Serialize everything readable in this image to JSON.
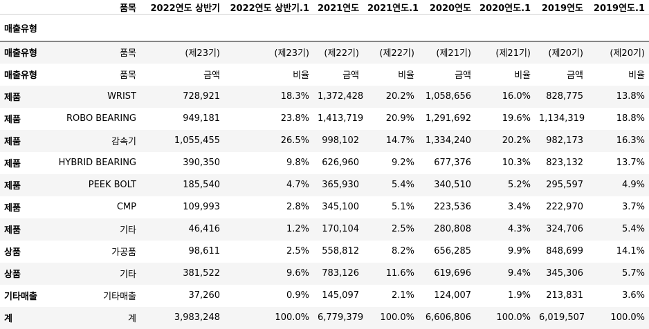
{
  "header": {
    "corner_label": "품목",
    "columns": [
      "2022연도 상반기",
      "2022연도 상반기.1",
      "2021연도",
      "2021연도.1",
      "2020연도",
      "2020연도.1",
      "2019연도",
      "2019연도.1"
    ],
    "index_name": "매출유형"
  },
  "rows": [
    {
      "type": "매출유형",
      "item": "품목",
      "values": [
        "(제23기)",
        "(제23기)",
        "(제22기)",
        "(제22기)",
        "(제21기)",
        "(제21기)",
        "(제20기)",
        "(제20기)"
      ]
    },
    {
      "type": "매출유형",
      "item": "품목",
      "values": [
        "금액",
        "비율",
        "금액",
        "비율",
        "금액",
        "비율",
        "금액",
        "비율"
      ]
    },
    {
      "type": "제품",
      "item": "WRIST",
      "values": [
        "728,921",
        "18.3%",
        "1,372,428",
        "20.2%",
        "1,058,656",
        "16.0%",
        "828,775",
        "13.8%"
      ]
    },
    {
      "type": "제품",
      "item": "ROBO BEARING",
      "values": [
        "949,181",
        "23.8%",
        "1,413,719",
        "20.9%",
        "1,291,692",
        "19.6%",
        "1,134,319",
        "18.8%"
      ]
    },
    {
      "type": "제품",
      "item": "감속기",
      "values": [
        "1,055,455",
        "26.5%",
        "998,102",
        "14.7%",
        "1,334,240",
        "20.2%",
        "982,173",
        "16.3%"
      ]
    },
    {
      "type": "제품",
      "item": "HYBRID BEARING",
      "values": [
        "390,350",
        "9.8%",
        "626,960",
        "9.2%",
        "677,376",
        "10.3%",
        "823,132",
        "13.7%"
      ]
    },
    {
      "type": "제품",
      "item": "PEEK BOLT",
      "values": [
        "185,540",
        "4.7%",
        "365,930",
        "5.4%",
        "340,510",
        "5.2%",
        "295,597",
        "4.9%"
      ]
    },
    {
      "type": "제품",
      "item": "CMP",
      "values": [
        "109,993",
        "2.8%",
        "345,100",
        "5.1%",
        "223,536",
        "3.4%",
        "222,970",
        "3.7%"
      ]
    },
    {
      "type": "제품",
      "item": "기타",
      "values": [
        "46,416",
        "1.2%",
        "170,104",
        "2.5%",
        "280,808",
        "4.3%",
        "324,706",
        "5.4%"
      ]
    },
    {
      "type": "상품",
      "item": "가공품",
      "values": [
        "98,611",
        "2.5%",
        "558,812",
        "8.2%",
        "656,285",
        "9.9%",
        "848,699",
        "14.1%"
      ]
    },
    {
      "type": "상품",
      "item": "기타",
      "values": [
        "381,522",
        "9.6%",
        "783,126",
        "11.6%",
        "619,696",
        "9.4%",
        "345,306",
        "5.7%"
      ]
    },
    {
      "type": "기타매출",
      "item": "기타매출",
      "values": [
        "37,260",
        "0.9%",
        "145,097",
        "2.1%",
        "124,007",
        "1.9%",
        "213,831",
        "3.6%"
      ]
    },
    {
      "type": "계",
      "item": "계",
      "values": [
        "3,983,248",
        "100.0%",
        "6,779,379",
        "100.0%",
        "6,606,806",
        "100.0%",
        "6,019,507",
        "100.0%"
      ]
    }
  ]
}
